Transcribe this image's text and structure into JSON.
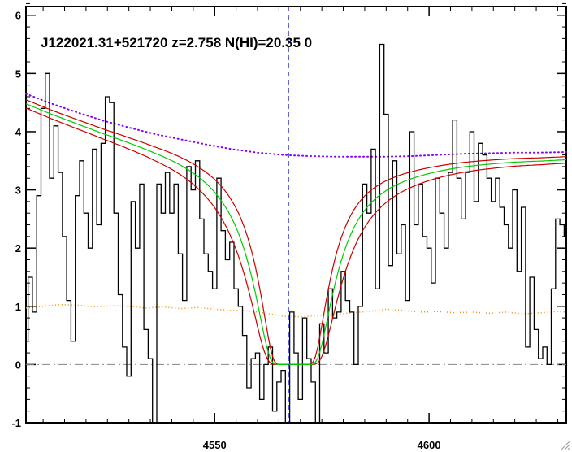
{
  "chart_data": {
    "type": "line",
    "title": "",
    "annotation": "J122021.31+521720 z=2.758 N(HI)=20.35 0",
    "xlabel": "",
    "ylabel": "",
    "xlim": [
      4506,
      4632
    ],
    "ylim": [
      -1,
      6.15
    ],
    "x_ticks": [
      4550,
      4600
    ],
    "y_ticks": [
      -1,
      0,
      1,
      2,
      3,
      4,
      5,
      6
    ],
    "grid": false,
    "vline_x": 4567.2,
    "colors": {
      "flux": "#000000",
      "model": "#00cc00",
      "model_bounds": "#cc0000",
      "continuum": "#8800ff",
      "error": "#ff8800",
      "zero": "#888888",
      "vline": "#0000cc"
    },
    "lya": {
      "center": 4568.5,
      "core_halfwidth": 1.2,
      "damping_width": 8.5,
      "damping_width_low": 10.0,
      "damping_width_high": 7.2
    },
    "series": [
      {
        "type": "step",
        "x": [
          4506,
          4507,
          4508,
          4509,
          4510,
          4511,
          4512,
          4513,
          4514,
          4515,
          4516,
          4517,
          4518,
          4519,
          4520,
          4521,
          4522,
          4523,
          4524,
          4525,
          4526,
          4527,
          4528,
          4529,
          4530,
          4531,
          4532,
          4533,
          4534,
          4535,
          4536,
          4537,
          4538,
          4539,
          4540,
          4541,
          4542,
          4543,
          4544,
          4545,
          4546,
          4547,
          4548,
          4549,
          4550,
          4551,
          4552,
          4553,
          4554,
          4555,
          4556,
          4557,
          4558,
          4559,
          4560,
          4561,
          4562,
          4563,
          4564,
          4565,
          4566,
          4567,
          4568,
          4569,
          4570,
          4571,
          4572,
          4573,
          4574,
          4575,
          4576,
          4577,
          4578,
          4579,
          4580,
          4581,
          4582,
          4583,
          4584,
          4585,
          4586,
          4587,
          4588,
          4589,
          4590,
          4591,
          4592,
          4593,
          4594,
          4595,
          4596,
          4597,
          4598,
          4599,
          4600,
          4601,
          4602,
          4603,
          4604,
          4605,
          4606,
          4607,
          4608,
          4609,
          4610,
          4611,
          4612,
          4613,
          4614,
          4615,
          4616,
          4617,
          4618,
          4619,
          4620,
          4621,
          4622,
          4623,
          4624,
          4625,
          4626,
          4627,
          4628,
          4629,
          4630,
          4631,
          4632
        ],
        "values": [
          0.4,
          1.5,
          0.9,
          2.9,
          4.4,
          5.0,
          3.2,
          4.1,
          3.3,
          2.2,
          1.1,
          0.4,
          2.9,
          3.5,
          2.6,
          2.0,
          3.7,
          2.4,
          3.8,
          4.6,
          4.5,
          2.6,
          1.2,
          0.3,
          -0.2,
          2.8,
          2.0,
          3.1,
          0.6,
          0.1,
          -1.0,
          3.1,
          2.6,
          3.3,
          2.6,
          3.1,
          1.9,
          1.1,
          3.4,
          3.0,
          3.5,
          2.5,
          1.9,
          1.6,
          1.3,
          3.2,
          2.3,
          1.8,
          2.1,
          1.3,
          1.0,
          0.5,
          -0.4,
          0.1,
          0.2,
          -0.6,
          0.0,
          0.3,
          -0.8,
          -0.3,
          -0.1,
          -1.0,
          0.9,
          0.2,
          -0.6,
          0.8,
          0.1,
          -0.3,
          -1.0,
          0.7,
          0.2,
          1.3,
          0.8,
          0.9,
          1.6,
          1.1,
          0.9,
          0.0,
          1.0,
          3.1,
          2.6,
          3.7,
          1.3,
          5.5,
          4.3,
          1.7,
          3.5,
          1.9,
          2.4,
          1.1,
          4.0,
          2.4,
          3.1,
          2.2,
          2.0,
          1.4,
          3.2,
          2.6,
          2.0,
          3.3,
          4.2,
          3.2,
          2.5,
          3.3,
          4.0,
          2.8,
          3.8,
          3.6,
          3.2,
          2.8,
          3.2,
          2.7,
          2.4,
          2.0,
          3.0,
          1.6,
          2.7,
          0.3,
          1.5,
          0.6,
          0.1,
          0.3,
          0.0,
          1.3,
          2.5,
          2.4,
          2.2
        ]
      },
      {
        "type": "continuum",
        "x": [
          4506,
          4512,
          4518,
          4524,
          4530,
          4536,
          4542,
          4548,
          4554,
          4560,
          4566,
          4572,
          4578,
          4584,
          4590,
          4596,
          4602,
          4608,
          4614,
          4620,
          4626,
          4632
        ],
        "values": [
          4.65,
          4.48,
          4.33,
          4.19,
          4.07,
          3.96,
          3.87,
          3.78,
          3.7,
          3.64,
          3.6,
          3.58,
          3.57,
          3.57,
          3.57,
          3.58,
          3.6,
          3.62,
          3.63,
          3.64,
          3.64,
          3.65
        ]
      },
      {
        "type": "error",
        "x": [
          4506,
          4510,
          4514,
          4518,
          4522,
          4526,
          4530,
          4534,
          4538,
          4542,
          4546,
          4550,
          4554,
          4558,
          4562,
          4566,
          4570,
          4574,
          4578,
          4582,
          4586,
          4590,
          4594,
          4598,
          4602,
          4606,
          4610,
          4614,
          4618,
          4622,
          4626,
          4630,
          4632
        ],
        "values": [
          0.97,
          1.0,
          1.03,
          1.02,
          0.99,
          1.01,
          1.0,
          0.97,
          0.99,
          0.96,
          0.98,
          0.95,
          0.93,
          0.92,
          0.88,
          0.83,
          0.82,
          0.84,
          0.86,
          0.89,
          0.91,
          0.95,
          0.93,
          0.9,
          0.91,
          0.89,
          0.9,
          0.88,
          0.9,
          0.87,
          0.89,
          0.91,
          0.9
        ]
      }
    ]
  },
  "ui": {
    "resize_grip_icon": "resize-grip-icon"
  }
}
